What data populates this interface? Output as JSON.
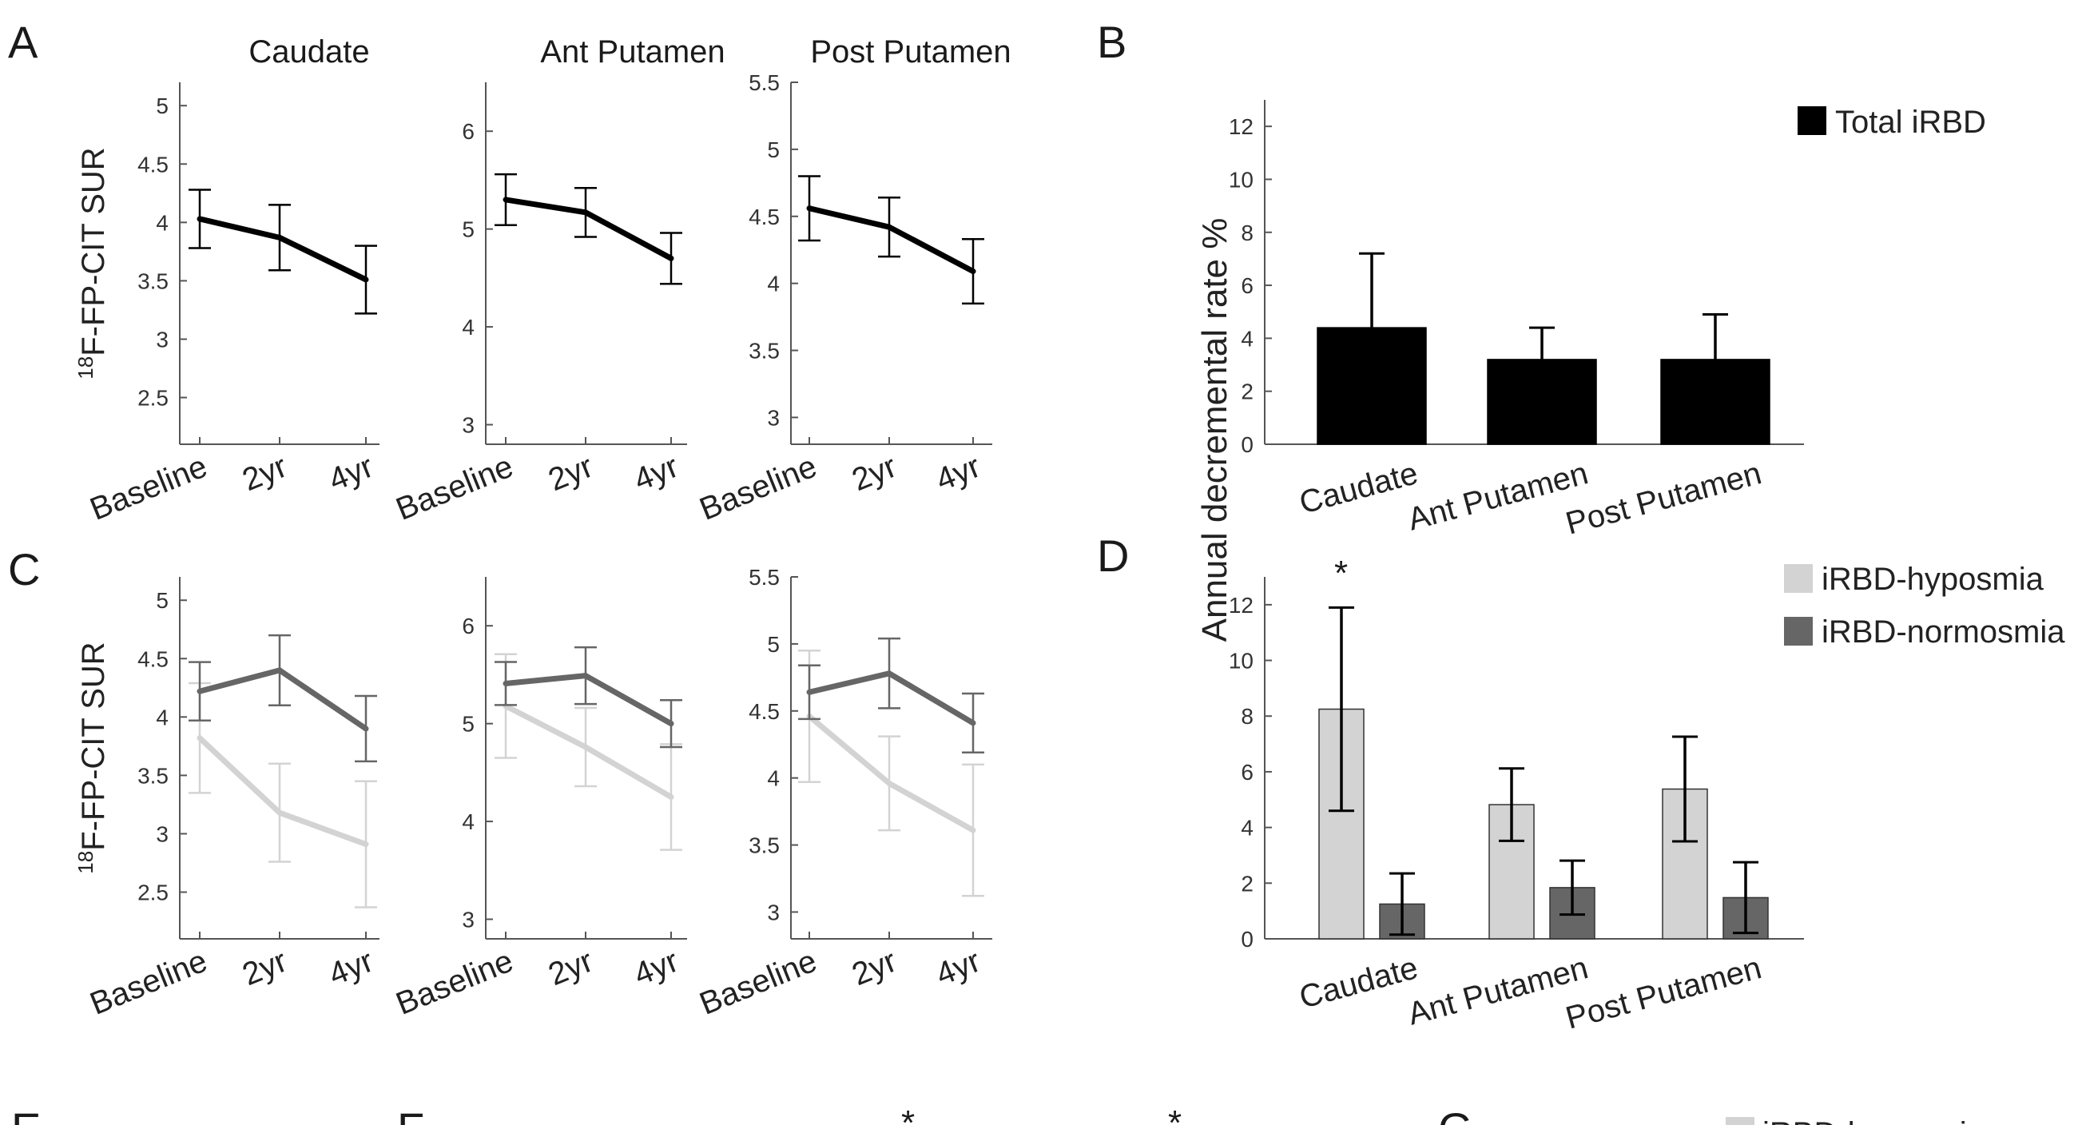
{
  "panel_letters": [
    "A",
    "B",
    "C",
    "D",
    "E",
    "F",
    "G"
  ],
  "legends": {
    "B": [
      {
        "label": "Total iRBD",
        "color": "#000000"
      }
    ],
    "D": [
      {
        "label": "iRBD-hyposmia",
        "color": "#d3d3d3"
      },
      {
        "label": "iRBD-normosmia",
        "color": "#666666"
      }
    ],
    "G": [
      {
        "label": "iRBD-hyposmia",
        "color": "#d3d3d3"
      }
    ]
  },
  "chart_data": [
    {
      "panel": "A",
      "type": "line",
      "title": "Caudate",
      "ylabel": "18F-FP-CIT SUR",
      "ylim": [
        2.1,
        5.2
      ],
      "yticks": [
        2.5,
        3,
        3.5,
        4,
        4.5,
        5
      ],
      "categories": [
        "Baseline",
        "2yr",
        "4yr"
      ],
      "series": [
        {
          "color": "#000000",
          "values": [
            4.03,
            3.87,
            3.51
          ],
          "errors": [
            0.25,
            0.28,
            0.29
          ]
        }
      ]
    },
    {
      "panel": "A",
      "type": "line",
      "title": "Ant Putamen",
      "ylabel": "",
      "ylim": [
        2.8,
        6.5
      ],
      "yticks": [
        3,
        4,
        5,
        6
      ],
      "categories": [
        "Baseline",
        "2yr",
        "4yr"
      ],
      "series": [
        {
          "color": "#000000",
          "values": [
            5.3,
            5.17,
            4.7
          ],
          "errors": [
            0.26,
            0.25,
            0.26
          ]
        }
      ]
    },
    {
      "panel": "A",
      "type": "line",
      "title": "Post Putamen",
      "ylabel": "",
      "ylim": [
        2.8,
        5.5
      ],
      "yticks": [
        3,
        3.5,
        4,
        4.5,
        5,
        5.5
      ],
      "categories": [
        "Baseline",
        "2yr",
        "4yr"
      ],
      "series": [
        {
          "color": "#000000",
          "values": [
            4.56,
            4.42,
            4.09
          ],
          "errors": [
            0.24,
            0.22,
            0.24
          ]
        }
      ]
    },
    {
      "panel": "B",
      "type": "bar",
      "title": "",
      "ylabel": "Annual decremental rate %",
      "ylim": [
        0,
        13
      ],
      "yticks": [
        0,
        2,
        4,
        6,
        8,
        10,
        12
      ],
      "categories": [
        "Caudate",
        "Ant Putamen",
        "Post Putamen"
      ],
      "series": [
        {
          "name": "Total iRBD",
          "color": "#000000",
          "values": [
            4.4,
            3.2,
            3.2
          ],
          "errors": [
            2.8,
            1.2,
            1.7
          ]
        }
      ]
    },
    {
      "panel": "C",
      "type": "line",
      "title": "",
      "ylabel": "18F-FP-CIT SUR",
      "ylim": [
        2.1,
        5.2
      ],
      "yticks": [
        2.5,
        3,
        3.5,
        4,
        4.5,
        5
      ],
      "categories": [
        "Baseline",
        "2yr",
        "4yr"
      ],
      "series": [
        {
          "color": "#d3d3d3",
          "values": [
            3.82,
            3.18,
            2.91
          ],
          "errors": [
            0.47,
            0.42,
            0.54
          ]
        },
        {
          "color": "#666666",
          "values": [
            4.22,
            4.4,
            3.9
          ],
          "errors": [
            0.25,
            0.3,
            0.28
          ]
        }
      ]
    },
    {
      "panel": "C",
      "type": "line",
      "title": "",
      "ylabel": "",
      "ylim": [
        2.8,
        6.5
      ],
      "yticks": [
        3,
        4,
        5,
        6
      ],
      "categories": [
        "Baseline",
        "2yr",
        "4yr"
      ],
      "series": [
        {
          "color": "#d3d3d3",
          "values": [
            5.18,
            4.76,
            4.25
          ],
          "errors": [
            0.53,
            0.4,
            0.54
          ]
        },
        {
          "color": "#666666",
          "values": [
            5.41,
            5.49,
            5.0
          ],
          "errors": [
            0.22,
            0.29,
            0.24
          ]
        }
      ]
    },
    {
      "panel": "C",
      "type": "line",
      "title": "",
      "ylabel": "",
      "ylim": [
        2.8,
        5.5
      ],
      "yticks": [
        3,
        3.5,
        4,
        4.5,
        5,
        5.5
      ],
      "categories": [
        "Baseline",
        "2yr",
        "4yr"
      ],
      "series": [
        {
          "color": "#d3d3d3",
          "values": [
            4.46,
            3.96,
            3.61
          ],
          "errors": [
            0.49,
            0.35,
            0.49
          ]
        },
        {
          "color": "#666666",
          "values": [
            4.64,
            4.78,
            4.41
          ],
          "errors": [
            0.2,
            0.26,
            0.22
          ]
        }
      ]
    },
    {
      "panel": "D",
      "type": "bar",
      "title": "",
      "ylabel": "",
      "ylim": [
        0,
        13
      ],
      "yticks": [
        0,
        2,
        4,
        6,
        8,
        10,
        12
      ],
      "categories": [
        "Caudate",
        "Ant Putamen",
        "Post Putamen"
      ],
      "annotations": [
        "*"
      ],
      "series": [
        {
          "name": "iRBD-hyposmia",
          "color": "#d3d3d3",
          "values": [
            8.25,
            4.82,
            5.38
          ],
          "errors": [
            3.65,
            1.3,
            1.88
          ]
        },
        {
          "name": "iRBD-normosmia",
          "color": "#666666",
          "values": [
            1.25,
            1.84,
            1.48
          ],
          "errors": [
            1.1,
            0.97,
            1.27
          ]
        }
      ]
    }
  ],
  "bottom_annotations": [
    "*",
    "*"
  ]
}
